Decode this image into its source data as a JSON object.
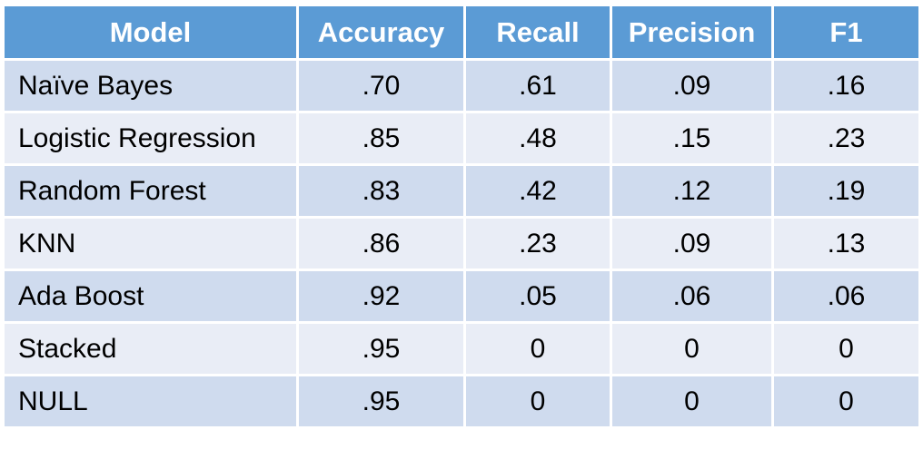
{
  "chart_data": {
    "type": "table",
    "columns": [
      "Model",
      "Accuracy",
      "Recall",
      "Precision",
      "F1"
    ],
    "rows": [
      [
        "Naïve Bayes",
        ".70",
        ".61",
        ".09",
        ".16"
      ],
      [
        "Logistic Regression",
        ".85",
        ".48",
        ".15",
        ".23"
      ],
      [
        "Random Forest",
        ".83",
        ".42",
        ".12",
        ".19"
      ],
      [
        "KNN",
        ".86",
        ".23",
        ".09",
        ".13"
      ],
      [
        "Ada Boost",
        ".92",
        ".05",
        ".06",
        ".06"
      ],
      [
        "Stacked",
        ".95",
        "0",
        "0",
        "0"
      ],
      [
        "NULL",
        ".95",
        "0",
        "0",
        "0"
      ]
    ]
  },
  "colors": {
    "header_bg": "#5b9bd5",
    "header_text": "#ffffff",
    "row_odd_bg": "#cfdbee",
    "row_even_bg": "#e9edf6",
    "cell_text": "#000000"
  }
}
